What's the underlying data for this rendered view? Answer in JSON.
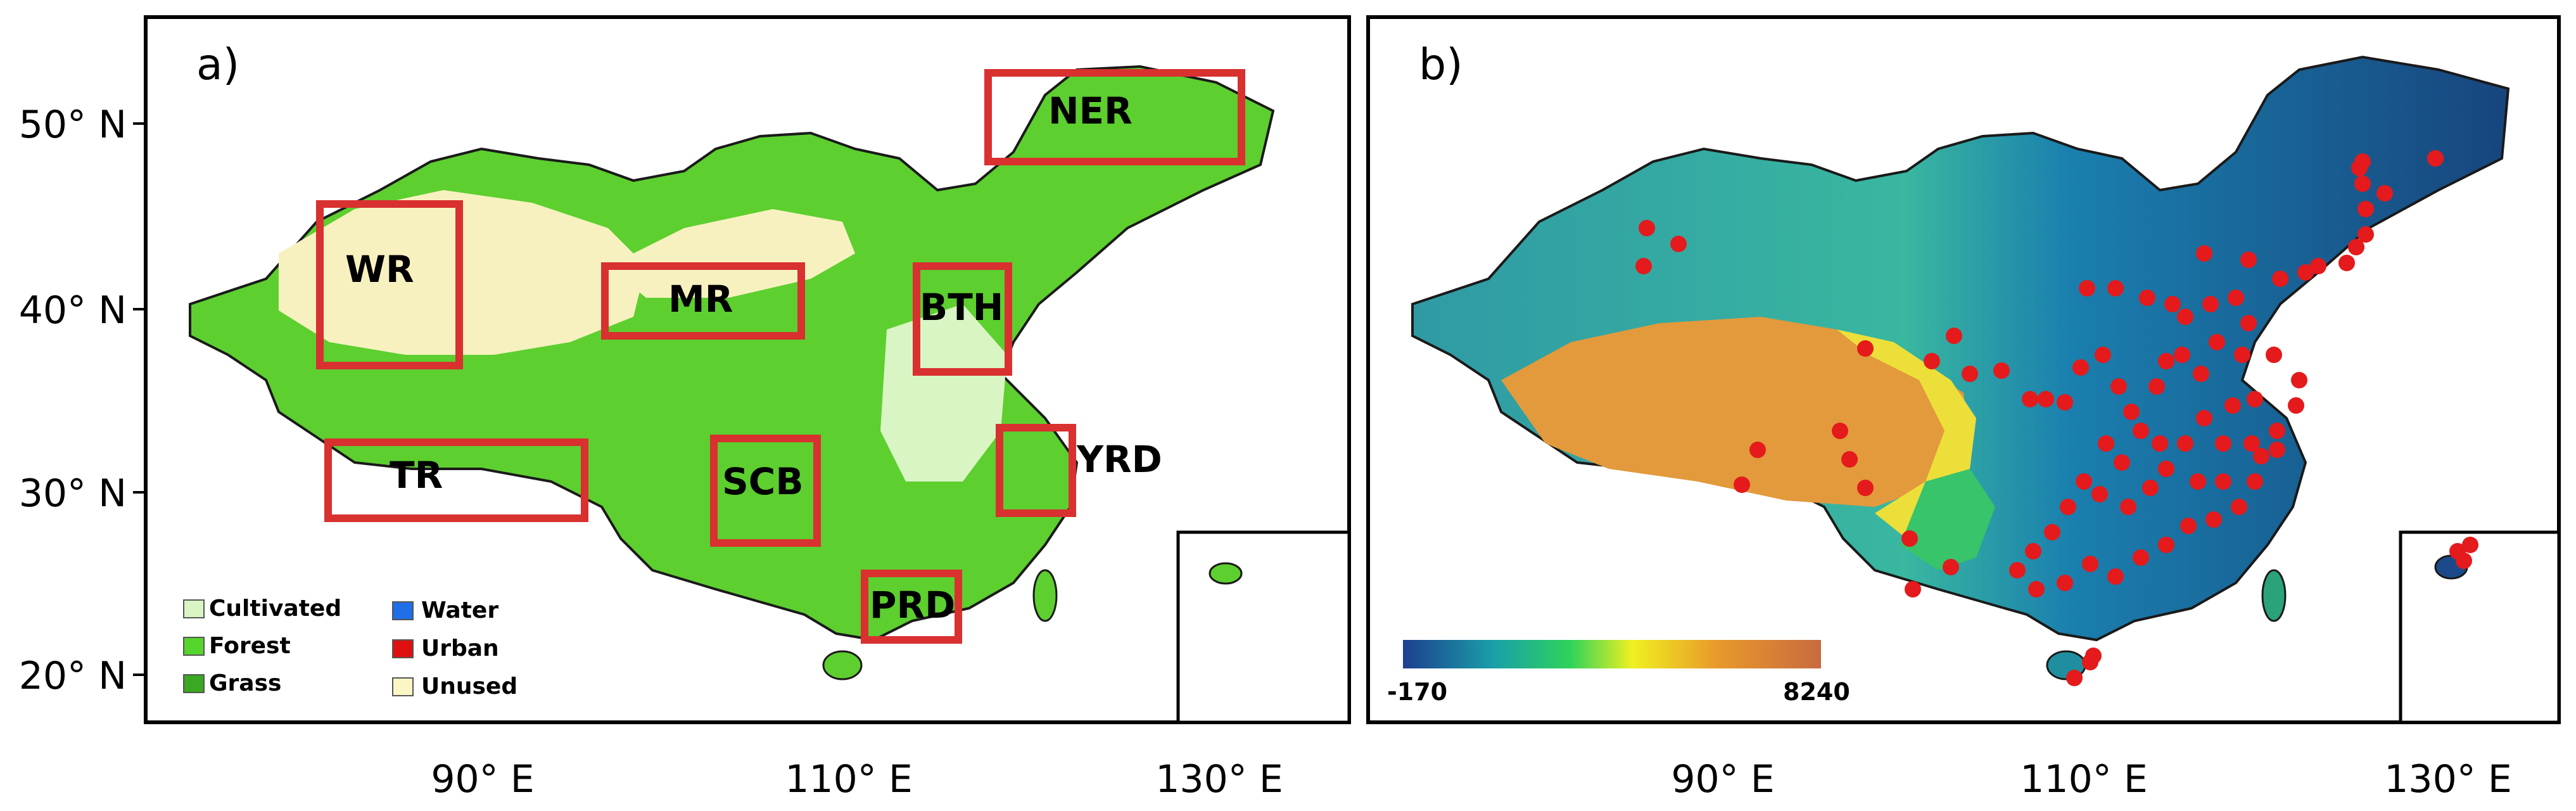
{
  "panels": {
    "a": {
      "label": "a)",
      "y_ticks": [
        "50° N",
        "40° N",
        "30° N",
        "20° N"
      ],
      "x_ticks": [
        "90° E",
        "110° E",
        "130° E"
      ],
      "regions": [
        "NER",
        "WR",
        "MR",
        "BTH",
        "TR",
        "SCB",
        "YRD",
        "PRD"
      ],
      "legend": [
        {
          "label": "Cultivated",
          "color": "#d9f5c4"
        },
        {
          "label": "Forest",
          "color": "#56d62c"
        },
        {
          "label": "Grass",
          "color": "#3aa820"
        },
        {
          "label": "Water",
          "color": "#1e6fe8"
        },
        {
          "label": "Urban",
          "color": "#e01010"
        },
        {
          "label": "Unused",
          "color": "#fbf6c4"
        }
      ]
    },
    "b": {
      "label": "b)",
      "x_ticks": [
        "90° E",
        "110° E",
        "130° E"
      ],
      "colorbar": {
        "min": "-170",
        "max": "8240"
      }
    }
  },
  "colors": {
    "region_box": "#d93030",
    "site_marker": "#e41a1c",
    "land_green": "#5dcf2f",
    "desert": "#f7f1c0"
  }
}
